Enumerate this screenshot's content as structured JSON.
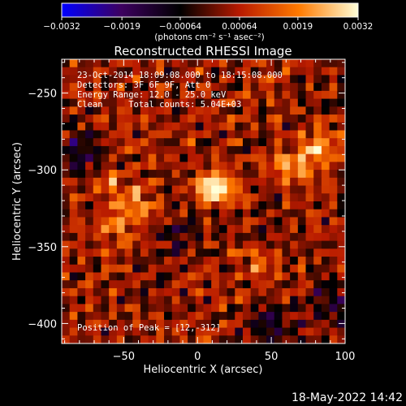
{
  "chart_data": {
    "type": "heatmap",
    "title": "Reconstructed RHESSI Image",
    "xlabel": "Heliocentric X (arcsec)",
    "ylabel": "Heliocentric Y (arcsec)",
    "xlim": [
      -92,
      100
    ],
    "ylim": [
      -413,
      -228
    ],
    "x_ticks": [
      -50,
      0,
      50,
      100
    ],
    "x_tick_labels": [
      "−50",
      "0",
      "50",
      "100"
    ],
    "y_ticks": [
      -250,
      -300,
      -350,
      -400
    ],
    "y_tick_labels": [
      "−250",
      "−300",
      "−350",
      "−400"
    ],
    "colorbar": {
      "range": [
        -0.0032,
        0.0032
      ],
      "ticks": [
        -0.0032,
        -0.0019,
        -0.00064,
        0.00064,
        0.0019,
        0.0032
      ],
      "tick_labels": [
        "−0.0032",
        "−0.0019",
        "−0.00064",
        "0.00064",
        "0.0019",
        "0.0032"
      ],
      "unit_label": "(photons cm⁻² s⁻¹ asec⁻²)",
      "colors": [
        "#0000ff",
        "#3d0060",
        "#000000",
        "#b81a00",
        "#ff7a00",
        "#ffffd8"
      ]
    },
    "sources": [
      {
        "x": 12,
        "y": -312,
        "relative_intensity": 1.0
      },
      {
        "x": 82,
        "y": -285,
        "relative_intensity": 0.7
      },
      {
        "x": 62,
        "y": -298,
        "relative_intensity": 0.55
      },
      {
        "x": -45,
        "y": -322,
        "relative_intensity": 0.55
      },
      {
        "x": -55,
        "y": -340,
        "relative_intensity": 0.45
      },
      {
        "x": -60,
        "y": -305,
        "relative_intensity": 0.3
      },
      {
        "x": 40,
        "y": -360,
        "relative_intensity": 0.3
      }
    ],
    "negative_regions": [
      {
        "x": -80,
        "y": -290,
        "relative_intensity": -0.6
      },
      {
        "x": 50,
        "y": -400,
        "relative_intensity": -0.5
      },
      {
        "x": 90,
        "y": -385,
        "relative_intensity": -0.4
      },
      {
        "x": -10,
        "y": -340,
        "relative_intensity": -0.35
      }
    ],
    "annotations": [
      "23-Oct-2014 18:09:08.000 to 18:15:08.000",
      "Detectors: 3F 6F 9F, Att 0",
      "Energy Range: 12.0 - 25.0 keV",
      "Clean     Total counts: 5.04E+03"
    ],
    "peak_label": "Position of Peak = [12,-312]"
  },
  "footer": {
    "timestamp": "18-May-2022 14:42"
  }
}
